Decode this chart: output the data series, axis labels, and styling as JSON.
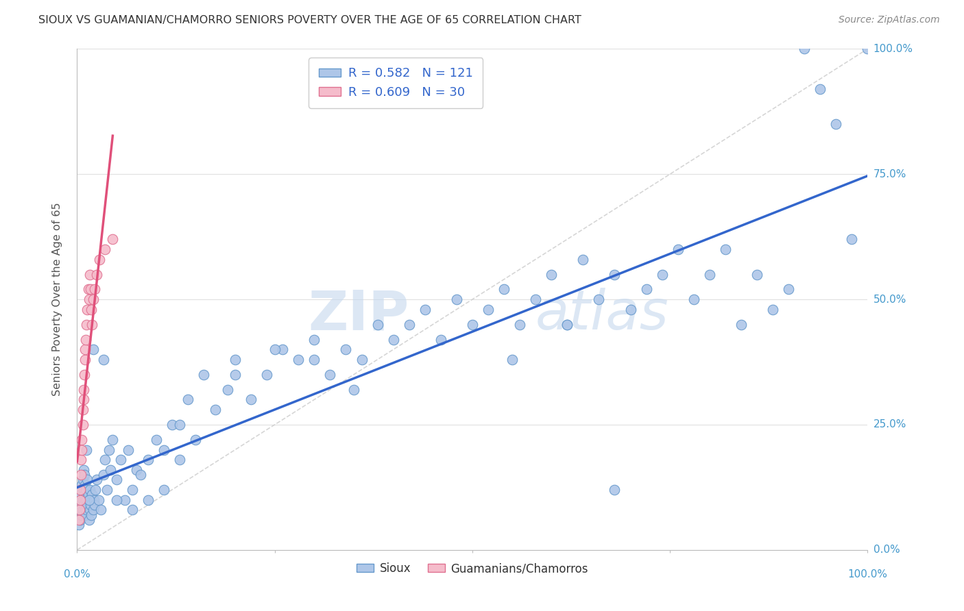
{
  "title": "SIOUX VS GUAMANIAN/CHAMORRO SENIORS POVERTY OVER THE AGE OF 65 CORRELATION CHART",
  "source": "Source: ZipAtlas.com",
  "ylabel": "Seniors Poverty Over the Age of 65",
  "ytick_labels": [
    "0.0%",
    "25.0%",
    "50.0%",
    "75.0%",
    "100.0%"
  ],
  "ytick_values": [
    0.0,
    0.25,
    0.5,
    0.75,
    1.0
  ],
  "sioux_color": "#aec6e8",
  "sioux_edge_color": "#6699cc",
  "guam_color": "#f5bccb",
  "guam_edge_color": "#e07090",
  "trend_sioux_color": "#3366cc",
  "trend_guam_color": "#e0507a",
  "diagonal_color": "#cccccc",
  "watermark_zip": "ZIP",
  "watermark_atlas": "atlas",
  "legend_r_sioux": "0.582",
  "legend_n_sioux": "121",
  "legend_r_guam": "0.609",
  "legend_n_guam": "30",
  "background_color": "#ffffff",
  "grid_color": "#e0e0e0",
  "sioux_x": [
    0.002,
    0.003,
    0.004,
    0.004,
    0.005,
    0.005,
    0.005,
    0.006,
    0.006,
    0.007,
    0.007,
    0.007,
    0.008,
    0.008,
    0.008,
    0.009,
    0.009,
    0.01,
    0.01,
    0.01,
    0.011,
    0.011,
    0.012,
    0.012,
    0.013,
    0.013,
    0.014,
    0.015,
    0.015,
    0.016,
    0.016,
    0.017,
    0.018,
    0.019,
    0.02,
    0.021,
    0.022,
    0.023,
    0.025,
    0.027,
    0.03,
    0.033,
    0.035,
    0.038,
    0.04,
    0.042,
    0.045,
    0.05,
    0.055,
    0.06,
    0.065,
    0.07,
    0.075,
    0.08,
    0.09,
    0.1,
    0.11,
    0.12,
    0.13,
    0.14,
    0.15,
    0.16,
    0.175,
    0.19,
    0.2,
    0.22,
    0.24,
    0.26,
    0.28,
    0.3,
    0.32,
    0.34,
    0.36,
    0.38,
    0.4,
    0.42,
    0.44,
    0.46,
    0.48,
    0.5,
    0.52,
    0.54,
    0.56,
    0.58,
    0.6,
    0.62,
    0.64,
    0.66,
    0.68,
    0.7,
    0.72,
    0.74,
    0.76,
    0.78,
    0.8,
    0.82,
    0.84,
    0.86,
    0.88,
    0.9,
    0.92,
    0.94,
    0.96,
    0.98,
    1.0,
    0.033,
    0.02,
    0.015,
    0.012,
    0.05,
    0.07,
    0.09,
    0.11,
    0.13,
    0.2,
    0.25,
    0.3,
    0.35,
    0.55,
    0.62,
    0.68
  ],
  "sioux_y": [
    0.05,
    0.08,
    0.1,
    0.06,
    0.12,
    0.09,
    0.11,
    0.07,
    0.13,
    0.1,
    0.08,
    0.14,
    0.12,
    0.09,
    0.16,
    0.11,
    0.15,
    0.08,
    0.13,
    0.1,
    0.07,
    0.12,
    0.1,
    0.08,
    0.09,
    0.14,
    0.11,
    0.06,
    0.1,
    0.08,
    0.12,
    0.09,
    0.07,
    0.11,
    0.08,
    0.1,
    0.09,
    0.12,
    0.14,
    0.1,
    0.08,
    0.15,
    0.18,
    0.12,
    0.2,
    0.16,
    0.22,
    0.14,
    0.18,
    0.1,
    0.2,
    0.12,
    0.16,
    0.15,
    0.18,
    0.22,
    0.2,
    0.25,
    0.18,
    0.3,
    0.22,
    0.35,
    0.28,
    0.32,
    0.38,
    0.3,
    0.35,
    0.4,
    0.38,
    0.42,
    0.35,
    0.4,
    0.38,
    0.45,
    0.42,
    0.45,
    0.48,
    0.42,
    0.5,
    0.45,
    0.48,
    0.52,
    0.45,
    0.5,
    0.55,
    0.45,
    0.58,
    0.5,
    0.55,
    0.48,
    0.52,
    0.55,
    0.6,
    0.5,
    0.55,
    0.6,
    0.45,
    0.55,
    0.48,
    0.52,
    1.0,
    0.92,
    0.85,
    0.62,
    1.0,
    0.38,
    0.4,
    0.1,
    0.2,
    0.1,
    0.08,
    0.1,
    0.12,
    0.25,
    0.35,
    0.4,
    0.38,
    0.32,
    0.38,
    0.45,
    0.12
  ],
  "guam_x": [
    0.002,
    0.003,
    0.004,
    0.004,
    0.005,
    0.005,
    0.006,
    0.006,
    0.007,
    0.007,
    0.008,
    0.008,
    0.009,
    0.01,
    0.01,
    0.011,
    0.012,
    0.013,
    0.014,
    0.015,
    0.016,
    0.017,
    0.018,
    0.019,
    0.02,
    0.022,
    0.025,
    0.028,
    0.035,
    0.045
  ],
  "guam_y": [
    0.06,
    0.08,
    0.1,
    0.12,
    0.15,
    0.18,
    0.22,
    0.2,
    0.25,
    0.28,
    0.3,
    0.32,
    0.35,
    0.38,
    0.4,
    0.42,
    0.45,
    0.48,
    0.52,
    0.5,
    0.55,
    0.52,
    0.48,
    0.45,
    0.5,
    0.52,
    0.55,
    0.58,
    0.6,
    0.62
  ]
}
